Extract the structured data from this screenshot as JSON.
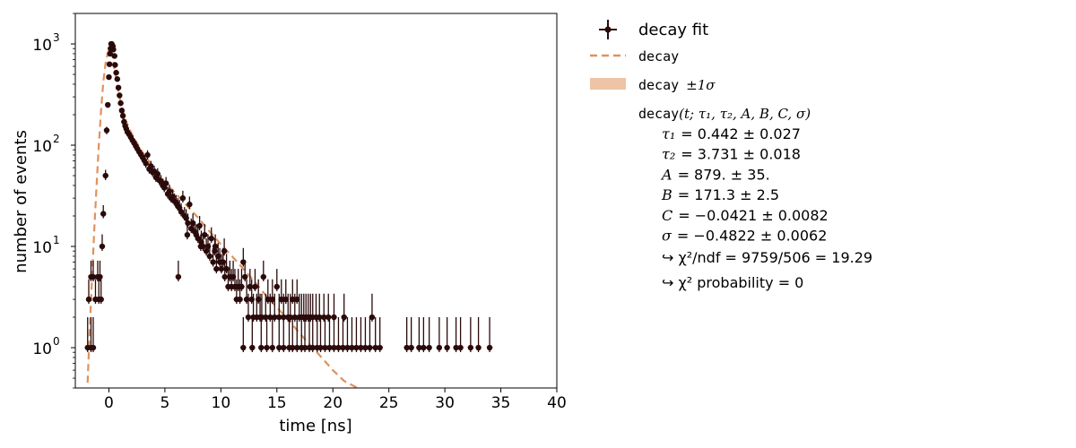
{
  "chart_data": {
    "type": "scatter",
    "xlabel": "time [ns]",
    "ylabel": "number of events",
    "xlim": [
      -3,
      40
    ],
    "ylim": [
      0.4,
      2000
    ],
    "yscale": "log",
    "x_ticks": [
      0,
      5,
      10,
      15,
      20,
      25,
      30,
      35,
      40
    ],
    "x_tick_labels": [
      "0",
      "5",
      "10",
      "15",
      "20",
      "25",
      "30",
      "35",
      "40"
    ],
    "y_ticks": [
      1,
      10,
      100,
      1000
    ],
    "y_tick_labels": [
      "10",
      "10",
      "10",
      "10"
    ],
    "y_tick_exponents": [
      "0",
      "1",
      "2",
      "3"
    ],
    "grid": false,
    "legend_placement": "right, outside axes",
    "colors": {
      "data": "#2a0a0a",
      "fit": "#e0915e",
      "band": "#eec3a6"
    },
    "model": {
      "tau1": 0.442,
      "tau2": 3.731,
      "A": 879,
      "B": 171.3,
      "C": -0.0421,
      "sigma": -0.4822
    },
    "series": [
      {
        "name": "decay fit",
        "kind": "points",
        "points": [
          [
            -1.9,
            1
          ],
          [
            -1.6,
            1
          ],
          [
            -1.4,
            1
          ],
          [
            -1.8,
            3
          ],
          [
            -1.6,
            5
          ],
          [
            -1.4,
            5
          ],
          [
            -1.2,
            3
          ],
          [
            -1.0,
            5
          ],
          [
            -0.8,
            5
          ],
          [
            -0.9,
            3
          ],
          [
            -0.7,
            3
          ],
          [
            -0.6,
            10
          ],
          [
            -0.5,
            21
          ],
          [
            -0.3,
            50
          ],
          [
            -0.2,
            140
          ],
          [
            -0.1,
            250
          ],
          [
            0.0,
            470
          ],
          [
            0.05,
            630
          ],
          [
            0.1,
            800
          ],
          [
            0.15,
            900
          ],
          [
            0.2,
            1000
          ],
          [
            0.25,
            1000
          ],
          [
            0.35,
            950
          ],
          [
            0.4,
            880
          ],
          [
            0.5,
            760
          ],
          [
            0.55,
            620
          ],
          [
            0.65,
            520
          ],
          [
            0.75,
            450
          ],
          [
            0.85,
            370
          ],
          [
            0.95,
            310
          ],
          [
            1.05,
            260
          ],
          [
            1.15,
            220
          ],
          [
            1.25,
            195
          ],
          [
            1.35,
            170
          ],
          [
            1.45,
            155
          ],
          [
            1.55,
            145
          ],
          [
            1.65,
            135
          ],
          [
            1.8,
            128
          ],
          [
            1.95,
            120
          ],
          [
            2.1,
            112
          ],
          [
            2.25,
            105
          ],
          [
            2.4,
            98
          ],
          [
            2.55,
            92
          ],
          [
            2.7,
            86
          ],
          [
            2.85,
            81
          ],
          [
            3.0,
            76
          ],
          [
            3.15,
            71
          ],
          [
            3.3,
            66
          ],
          [
            3.45,
            80
          ],
          [
            3.6,
            58
          ],
          [
            3.75,
            62
          ],
          [
            3.9,
            54
          ],
          [
            4.05,
            55
          ],
          [
            4.2,
            48
          ],
          [
            4.35,
            52
          ],
          [
            4.5,
            45
          ],
          [
            4.65,
            44
          ],
          [
            4.8,
            40
          ],
          [
            4.95,
            38
          ],
          [
            5.1,
            42
          ],
          [
            5.25,
            33
          ],
          [
            5.4,
            35
          ],
          [
            5.55,
            30
          ],
          [
            5.7,
            31
          ],
          [
            5.85,
            28
          ],
          [
            6.0,
            27
          ],
          [
            6.15,
            25
          ],
          [
            6.3,
            24
          ],
          [
            6.45,
            22
          ],
          [
            6.6,
            30
          ],
          [
            6.75,
            20
          ],
          [
            6.9,
            19
          ],
          [
            7.05,
            17
          ],
          [
            7.2,
            26
          ],
          [
            7.35,
            15
          ],
          [
            7.5,
            17
          ],
          [
            7.65,
            14
          ],
          [
            7.8,
            13
          ],
          [
            7.95,
            12
          ],
          [
            8.1,
            16
          ],
          [
            8.25,
            11
          ],
          [
            8.4,
            10
          ],
          [
            8.55,
            13
          ],
          [
            8.7,
            9
          ],
          [
            8.85,
            10
          ],
          [
            9.0,
            8
          ],
          [
            9.15,
            12
          ],
          [
            9.3,
            7
          ],
          [
            9.45,
            9
          ],
          [
            9.6,
            6
          ],
          [
            9.75,
            8
          ],
          [
            9.9,
            7
          ],
          [
            10.05,
            6
          ],
          [
            10.2,
            7
          ],
          [
            10.35,
            5
          ],
          [
            10.5,
            6
          ],
          [
            10.65,
            4
          ],
          [
            10.8,
            5
          ],
          [
            10.95,
            4
          ],
          [
            11.1,
            5
          ],
          [
            11.25,
            4
          ],
          [
            11.4,
            3
          ],
          [
            11.55,
            4
          ],
          [
            11.7,
            3
          ],
          [
            11.85,
            4
          ],
          [
            12.0,
            7
          ],
          [
            12.15,
            5
          ],
          [
            12.3,
            3
          ],
          [
            12.45,
            2
          ],
          [
            12.6,
            4
          ],
          [
            12.75,
            3
          ],
          [
            12.9,
            2
          ],
          [
            13.05,
            4
          ],
          [
            13.2,
            2
          ],
          [
            13.35,
            3
          ],
          [
            13.5,
            2
          ],
          [
            13.65,
            2
          ],
          [
            13.8,
            5
          ],
          [
            14.0,
            2
          ],
          [
            14.2,
            3
          ],
          [
            14.4,
            2
          ],
          [
            14.6,
            3
          ],
          [
            14.8,
            2
          ],
          [
            15.0,
            4
          ],
          [
            15.2,
            2
          ],
          [
            15.4,
            3
          ],
          [
            15.6,
            2
          ],
          [
            15.8,
            3
          ],
          [
            16.0,
            2
          ],
          [
            16.2,
            2
          ],
          [
            16.4,
            3
          ],
          [
            16.6,
            2
          ],
          [
            16.8,
            3
          ],
          [
            17.0,
            2
          ],
          [
            17.2,
            2
          ],
          [
            17.4,
            2
          ],
          [
            17.6,
            2
          ],
          [
            17.8,
            2
          ],
          [
            18.0,
            2
          ],
          [
            18.2,
            2
          ],
          [
            18.5,
            2
          ],
          [
            18.8,
            2
          ],
          [
            19.2,
            2
          ],
          [
            19.6,
            2
          ],
          [
            20.1,
            2
          ],
          [
            21.0,
            2
          ],
          [
            23.5,
            2
          ],
          [
            6.2,
            5
          ],
          [
            9.5,
            10
          ],
          [
            10.3,
            9
          ],
          [
            8.2,
            10
          ],
          [
            7.0,
            13
          ],
          [
            12.0,
            1
          ],
          [
            12.8,
            1
          ],
          [
            13.6,
            1
          ],
          [
            14.1,
            1
          ],
          [
            14.6,
            1
          ],
          [
            15.2,
            1
          ],
          [
            15.6,
            1
          ],
          [
            16.1,
            1
          ],
          [
            16.4,
            1
          ],
          [
            16.8,
            1
          ],
          [
            17.2,
            1
          ],
          [
            17.5,
            1
          ],
          [
            17.9,
            1
          ],
          [
            18.2,
            1
          ],
          [
            18.6,
            1
          ],
          [
            18.9,
            1
          ],
          [
            19.3,
            1
          ],
          [
            19.7,
            1
          ],
          [
            20.1,
            1
          ],
          [
            20.5,
            1
          ],
          [
            20.9,
            1
          ],
          [
            21.3,
            1
          ],
          [
            21.7,
            1
          ],
          [
            22.1,
            1
          ],
          [
            22.5,
            1
          ],
          [
            22.9,
            1
          ],
          [
            23.3,
            1
          ],
          [
            23.8,
            1
          ],
          [
            24.2,
            1
          ],
          [
            26.6,
            1
          ],
          [
            27.0,
            1
          ],
          [
            27.7,
            1
          ],
          [
            28.1,
            1
          ],
          [
            28.6,
            1
          ],
          [
            29.5,
            1
          ],
          [
            30.2,
            1
          ],
          [
            31.0,
            1
          ],
          [
            31.4,
            1
          ],
          [
            32.3,
            1
          ],
          [
            33.0,
            1
          ],
          [
            34.0,
            1
          ]
        ]
      },
      {
        "name": "decay",
        "kind": "curve",
        "points": [
          [
            -1.9,
            0.45
          ],
          [
            -1.7,
            1.6
          ],
          [
            -1.5,
            5
          ],
          [
            -1.3,
            15
          ],
          [
            -1.1,
            40
          ],
          [
            -0.9,
            100
          ],
          [
            -0.7,
            220
          ],
          [
            -0.5,
            420
          ],
          [
            -0.3,
            640
          ],
          [
            -0.1,
            820
          ],
          [
            0.1,
            900
          ],
          [
            0.3,
            780
          ],
          [
            0.5,
            560
          ],
          [
            0.8,
            360
          ],
          [
            1.1,
            250
          ],
          [
            1.5,
            175
          ],
          [
            2.0,
            132
          ],
          [
            2.5,
            105
          ],
          [
            3.0,
            85
          ],
          [
            4.0,
            60
          ],
          [
            5.0,
            43
          ],
          [
            6.0,
            33
          ],
          [
            7.0,
            25
          ],
          [
            8.0,
            19
          ],
          [
            9.0,
            14
          ],
          [
            10.0,
            10.5
          ],
          [
            11.0,
            8
          ],
          [
            12.0,
            6
          ],
          [
            13.0,
            4.5
          ],
          [
            14.0,
            3.3
          ],
          [
            15.0,
            2.5
          ],
          [
            16.0,
            1.9
          ],
          [
            17.0,
            1.4
          ],
          [
            18.0,
            1.05
          ],
          [
            19.0,
            0.8
          ],
          [
            20.0,
            0.6
          ],
          [
            21.0,
            0.47
          ],
          [
            22.2,
            0.4
          ]
        ]
      }
    ]
  },
  "legend": {
    "data_label": "decay fit",
    "curve_label": "decay",
    "band_label": "decay",
    "band_suffix": "±1σ"
  },
  "fit_box": {
    "function_name": "decay",
    "function_args": "(t; τ₁, τ₂, A, B, C, σ)",
    "params": [
      {
        "name": "τ₁",
        "value": "= 0.442 ± 0.027"
      },
      {
        "name": "τ₂",
        "value": "= 3.731 ± 0.018"
      },
      {
        "name": "A",
        "value": "= 879. ± 35."
      },
      {
        "name": "B",
        "value": "= 171.3 ± 2.5"
      },
      {
        "name": "C",
        "value": "= −0.0421 ± 0.0082"
      },
      {
        "name": "σ",
        "value": "= −0.4822 ± 0.0062"
      }
    ],
    "chi2": "↪ χ²/ndf = 9759/506 = 19.29",
    "prob": "↪ χ² probability = 0"
  }
}
